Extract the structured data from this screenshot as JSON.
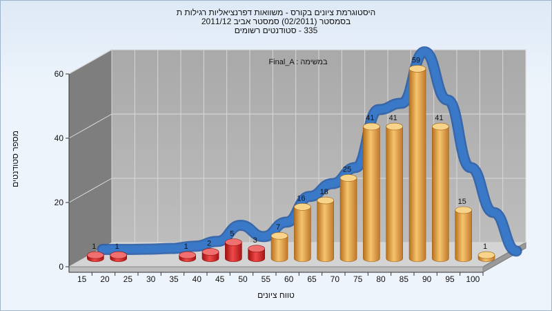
{
  "title": {
    "line1": "היסטוגרמת ציונים בקורס - משוואות דפרנציאליות רגילות ת",
    "line2": "בסמסטר  (02/2011)  סמסטר אביב 2011/12",
    "line3": "335 - סטודנטים רשומים"
  },
  "colors": {
    "bar_low": "#d42020",
    "bar_high": "#e8a040",
    "curve": "#3a78c8",
    "back_wall": "#b5b5b5",
    "side_wall": "#7e7e7e"
  },
  "chart_data": {
    "type": "bar",
    "annotation": "Final_A : במשימה",
    "xlabel": "טווח ציונים",
    "ylabel": "מספר סטודנטים",
    "categories": [
      "15",
      "20",
      "25",
      "30",
      "35",
      "40",
      "45",
      "50",
      "55",
      "60",
      "65",
      "70",
      "75",
      "80",
      "85",
      "90",
      "95",
      "100"
    ],
    "values": [
      1,
      1,
      0,
      0,
      1,
      2,
      5,
      3,
      7,
      16,
      18,
      25,
      41,
      41,
      59,
      41,
      15,
      1
    ],
    "yticks": [
      0,
      20,
      40,
      60
    ],
    "ylim": [
      0,
      60
    ],
    "low_threshold_category": "55",
    "curve": [
      0.5,
      0.5,
      0.6,
      0.8,
      1.5,
      3,
      8,
      4.5,
      9,
      17,
      21,
      26,
      44,
      46,
      62,
      47,
      26,
      12,
      0
    ],
    "grid": true,
    "style": "3d-cylinder"
  }
}
